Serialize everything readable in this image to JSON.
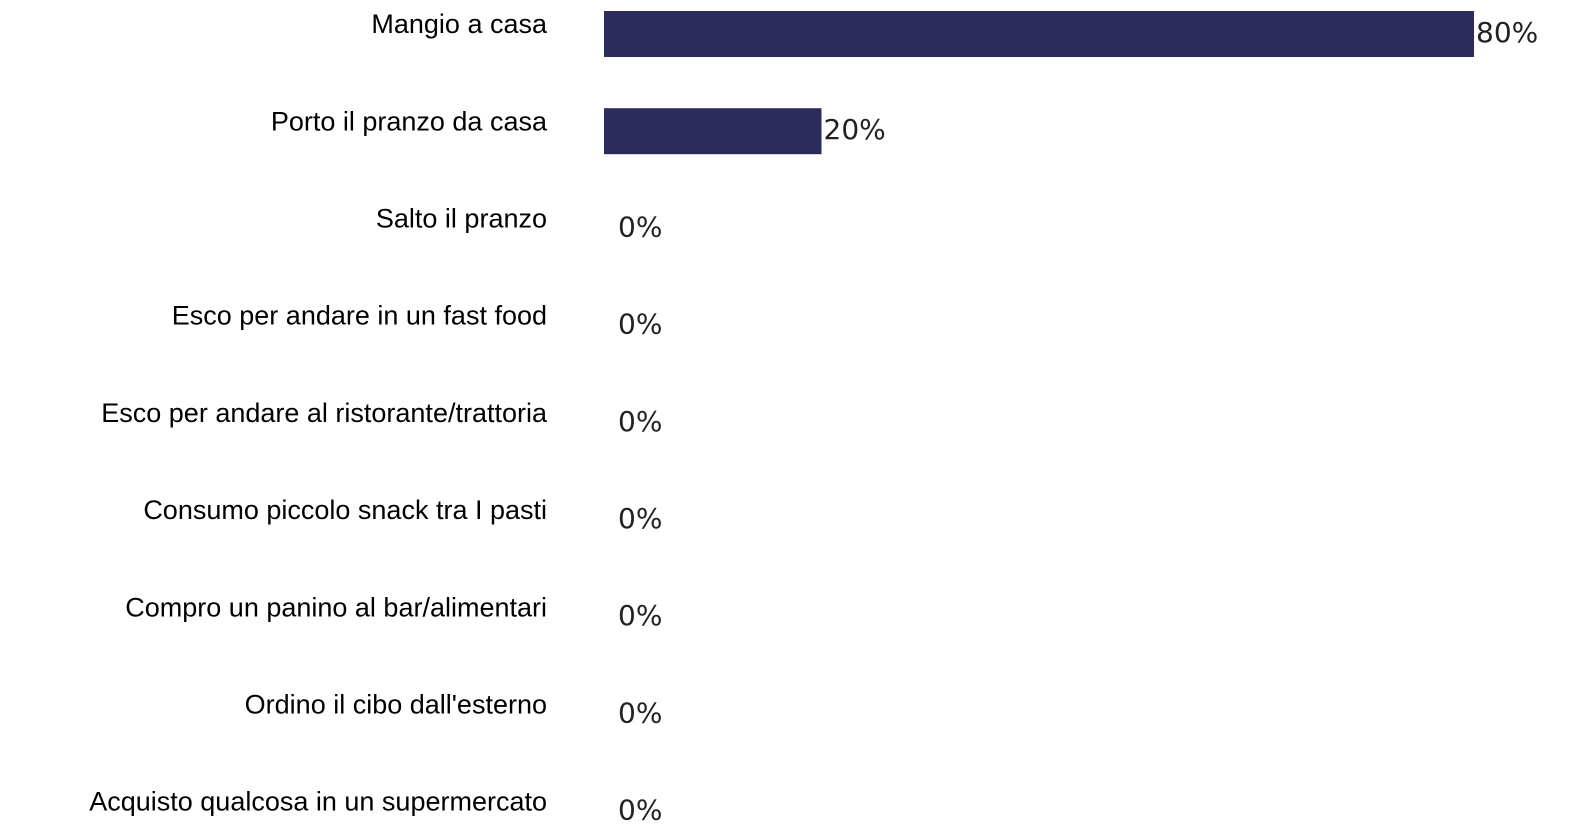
{
  "chart_data": {
    "type": "bar",
    "orientation": "horizontal",
    "categories": [
      "Mangio a casa",
      "Porto il pranzo da casa",
      "Salto il pranzo",
      "Esco per andare in un fast food",
      "Esco per andare al ristorante/trattoria",
      "Consumo piccolo snack tra I pasti",
      "Compro un panino al bar/alimentari",
      "Ordino il cibo dall'esterno",
      "Acquisto qualcosa in un supermercato"
    ],
    "values": [
      80,
      20,
      0,
      0,
      0,
      0,
      0,
      0,
      0
    ],
    "value_labels": [
      "80%",
      "20%",
      "0%",
      "0%",
      "0%",
      "0%",
      "0%",
      "0%",
      "0%"
    ],
    "color": "#2b2b5c"
  }
}
